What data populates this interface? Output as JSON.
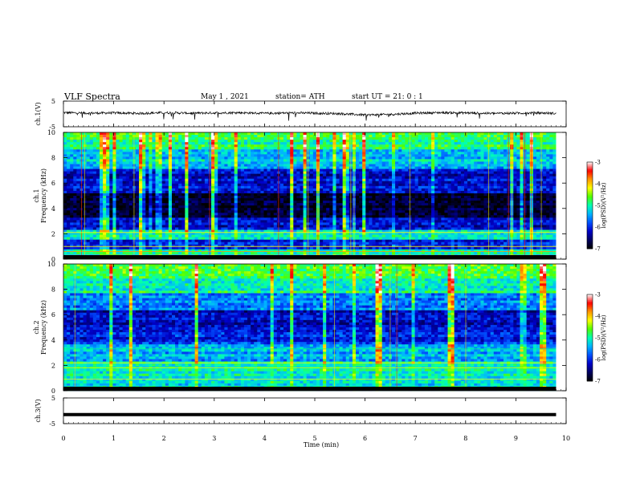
{
  "header": {
    "title": "VLF  Spectra",
    "date": "May 1  , 2021",
    "station": "station= ATH",
    "start": "start  UT  =    21: 0   : 1"
  },
  "chart_data": [
    {
      "type": "line",
      "id": "ch1-waveform",
      "ylabel": "ch.1(V)",
      "ylim": [
        -5,
        5
      ],
      "yticks": [
        "5",
        "-5"
      ],
      "xlim": [
        0,
        10
      ],
      "description_values": "noise waveform around 0 V with bursts up to about -3 V",
      "x_minutes": [
        0,
        0.5,
        1,
        1.5,
        2,
        2.5,
        3,
        3.5,
        4,
        4.5,
        5,
        5.5,
        6,
        6.5,
        7,
        7.5,
        8,
        8.5,
        9,
        9.5,
        9.8
      ],
      "y_volts": [
        0.5,
        0.3,
        0.4,
        0.2,
        0.5,
        0.3,
        0.4,
        0.5,
        0.2,
        0.4,
        0.3,
        0.1,
        -0.4,
        -0.2,
        0.3,
        0.5,
        0.4,
        0.2,
        0.3,
        0.4,
        0.2
      ]
    },
    {
      "type": "heatmap",
      "id": "ch1-spectrogram",
      "ylabel": "Frequency  (kHz)",
      "channel_label": "ch.1",
      "ylim": [
        0,
        10
      ],
      "yticks": [
        "0",
        "2",
        "4",
        "6",
        "8",
        "10"
      ],
      "xlim": [
        0,
        9.8
      ],
      "colorbar": {
        "label": "log(PSD)(V²/Hz)",
        "range": [
          -7,
          -3
        ],
        "ticks": [
          "-3",
          "-4",
          "-5",
          "-6",
          "-7"
        ]
      },
      "band_psd_kHz": [
        {
          "f_range": [
            0,
            0.7
          ],
          "level": -5.0
        },
        {
          "f_range": [
            0.7,
            1.6
          ],
          "level": -6.0
        },
        {
          "f_range": [
            1.6,
            2.4
          ],
          "level": -5.2
        },
        {
          "f_range": [
            2.4,
            3.2
          ],
          "level": -6.2
        },
        {
          "f_range": [
            3.2,
            5.2
          ],
          "level": -6.8
        },
        {
          "f_range": [
            5.2,
            7.2
          ],
          "level": -6.2
        },
        {
          "f_range": [
            7.2,
            8.6
          ],
          "level": -5.3
        },
        {
          "f_range": [
            8.6,
            10
          ],
          "level": -4.9
        }
      ]
    },
    {
      "type": "heatmap",
      "id": "ch2-spectrogram",
      "ylabel": "Frequency  (kHz)",
      "channel_label": "ch.2",
      "ylim": [
        0,
        10
      ],
      "yticks": [
        "0",
        "2",
        "4",
        "6",
        "8",
        "10"
      ],
      "xlim": [
        0,
        9.8
      ],
      "colorbar": {
        "label": "log(PSD)(V²/Hz)",
        "range": [
          -7,
          -3
        ],
        "ticks": [
          "-3",
          "-4",
          "-5",
          "-6",
          "-7"
        ]
      },
      "band_psd_kHz": [
        {
          "f_range": [
            0,
            1.2
          ],
          "level": -5.2
        },
        {
          "f_range": [
            1.2,
            2.4
          ],
          "level": -5.0
        },
        {
          "f_range": [
            2.4,
            3.6
          ],
          "level": -5.4
        },
        {
          "f_range": [
            3.6,
            5.0
          ],
          "level": -6.0
        },
        {
          "f_range": [
            5.0,
            6.4
          ],
          "level": -6.3
        },
        {
          "f_range": [
            6.4,
            7.6
          ],
          "level": -5.6
        },
        {
          "f_range": [
            7.6,
            8.8
          ],
          "level": -5.0
        },
        {
          "f_range": [
            8.8,
            10
          ],
          "level": -4.6
        }
      ]
    },
    {
      "type": "line",
      "id": "ch3-waveform",
      "ylabel": "ch.3(V)",
      "ylim": [
        -5,
        5
      ],
      "yticks": [
        "5",
        "-5"
      ],
      "xlim": [
        0,
        10
      ],
      "x_minutes": [
        0,
        9.8
      ],
      "y_volts": [
        -1.5,
        -1.5
      ]
    }
  ],
  "xaxis": {
    "label": "Time  (min)",
    "ticks": [
      "0",
      "1",
      "2",
      "3",
      "4",
      "5",
      "6",
      "7",
      "8",
      "9",
      "10"
    ],
    "range": [
      0,
      10
    ]
  },
  "colors": {
    "ramp": [
      "#000000",
      "#000060",
      "#0000c8",
      "#0050ff",
      "#00b4ff",
      "#00ffb4",
      "#50ff00",
      "#ffff00",
      "#ff9600",
      "#ff0000",
      "#ffffff"
    ]
  }
}
